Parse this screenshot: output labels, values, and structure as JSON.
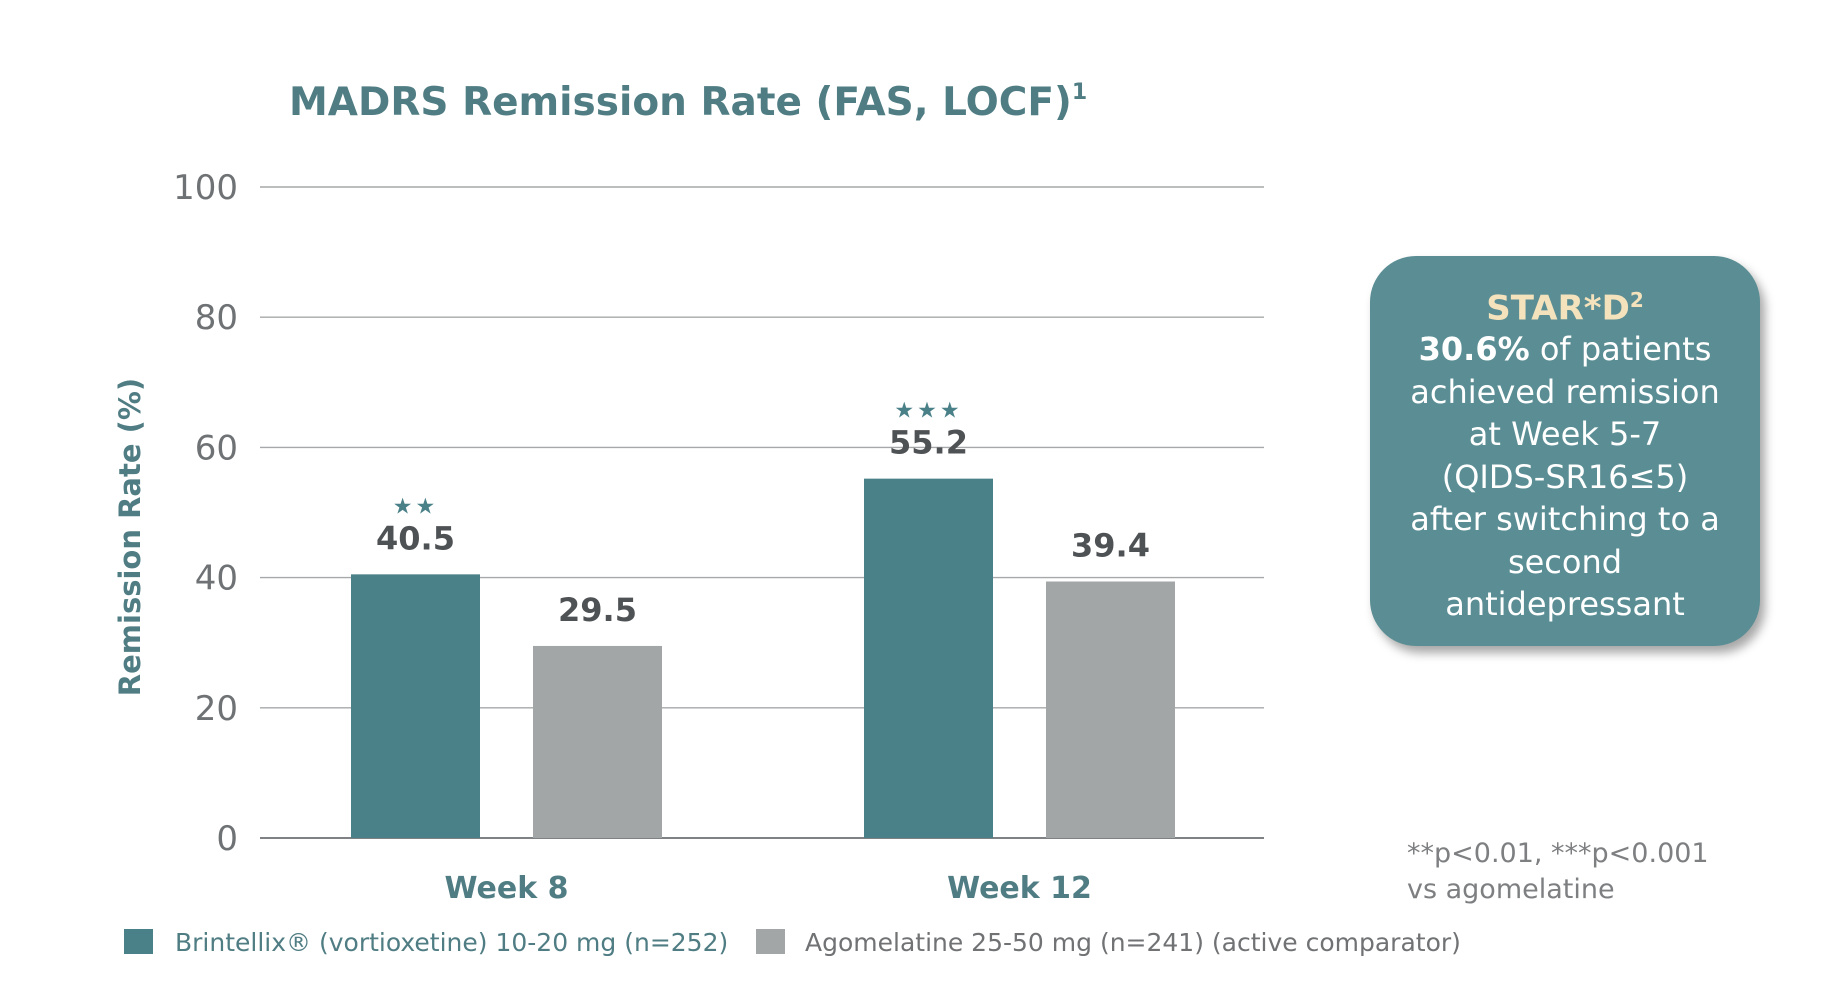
{
  "chart_data": {
    "type": "bar",
    "title": "MADRS Remission Rate (FAS, LOCF)",
    "title_superscript": "1",
    "ylabel": "Remission Rate (%)",
    "xlabel": "",
    "ylim": [
      0,
      100
    ],
    "yticks": [
      "0",
      "20",
      "40",
      "60",
      "80",
      "100"
    ],
    "grid": true,
    "categories": [
      "Week 8",
      "Week 12"
    ],
    "series": [
      {
        "name": "Brintellix® (vortioxetine) 10-20 mg (n=252)",
        "color": "#4a8189",
        "values": [
          40.5,
          55.2
        ],
        "labels": [
          "40.5",
          "55.2"
        ],
        "significance": [
          "★★",
          "★★★"
        ]
      },
      {
        "name": "Agomelatine 25-50 mg (n=241) (active comparator)",
        "color": "#a3a6a7",
        "values": [
          29.5,
          39.4
        ],
        "labels": [
          "29.5",
          "39.4"
        ],
        "significance": [
          "",
          ""
        ]
      }
    ],
    "legend_position": "bottom-left"
  },
  "callout": {
    "title": "STAR*D",
    "title_superscript": "2",
    "highlight": "30.6%",
    "line1_rest": " of patients",
    "lines": [
      "achieved remission",
      "at Week 5-7",
      "(QIDS-SR16≤5)",
      "after switching to a",
      "second",
      "antidepressant"
    ]
  },
  "footnote": {
    "line1": "**p<0.01, ***p<0.001",
    "line2": "vs agomelatine"
  },
  "colors": {
    "title": "#4f7d83",
    "axis_text": "#6f7274",
    "category_text": "#4f7d83",
    "value_text": "#4f5254",
    "gridline": "#a6a8a9",
    "callout_bg": "#5a8e94",
    "callout_title": "#f4e2bc"
  }
}
